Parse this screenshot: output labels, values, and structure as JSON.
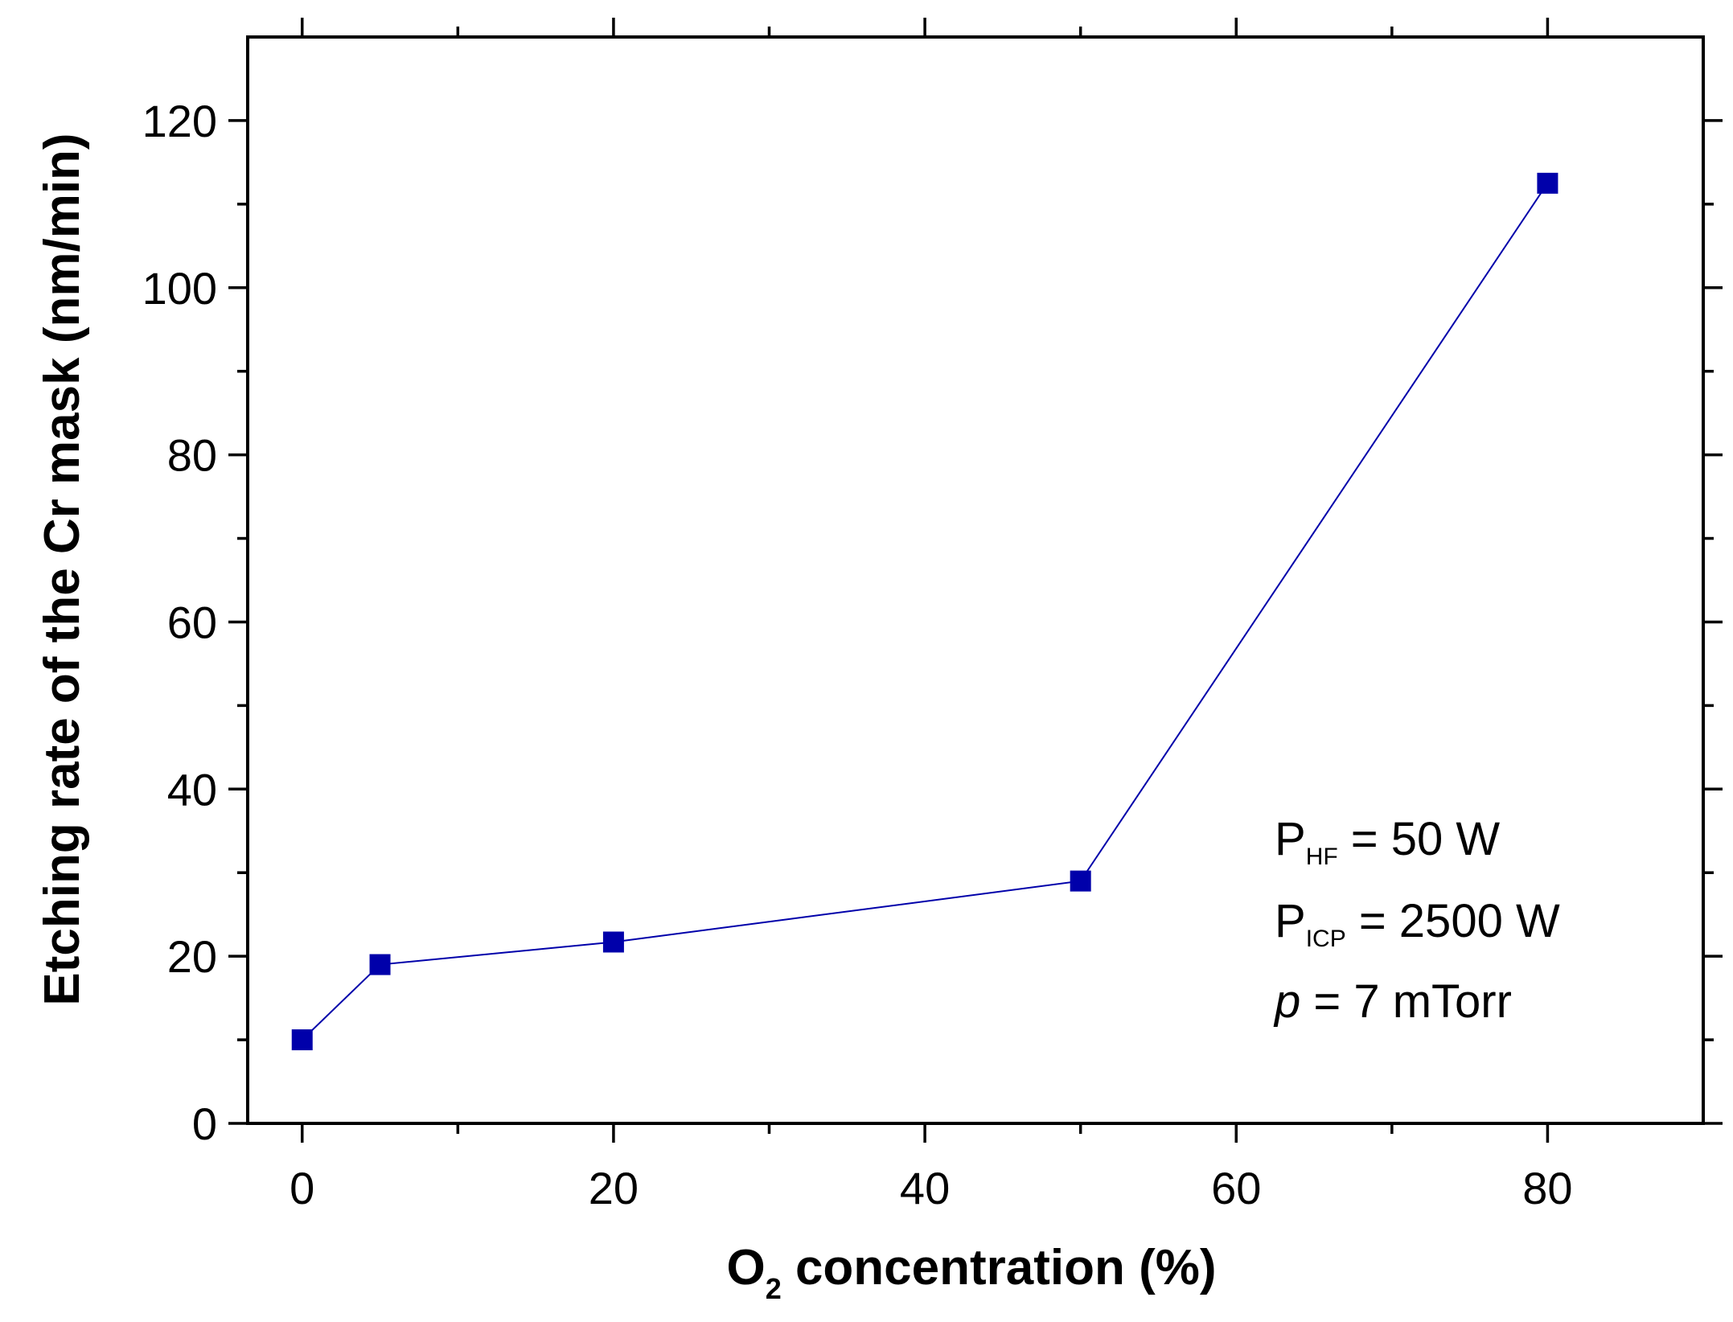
{
  "chart_data": {
    "type": "line",
    "title": "",
    "xlabel": {
      "main": "O",
      "sub": "2",
      "rest": " concentration (%)"
    },
    "ylabel": "Etching rate of the Cr mask (nm/min)",
    "xlim": [
      -3.5,
      90
    ],
    "ylim": [
      0,
      130
    ],
    "xticks_major": [
      0,
      20,
      40,
      60,
      80
    ],
    "xticks_minor": [
      10,
      30,
      50,
      70
    ],
    "yticks_major": [
      0,
      20,
      40,
      60,
      80,
      100,
      120
    ],
    "yticks_minor": [
      10,
      30,
      50,
      70,
      90,
      110
    ],
    "xtick_labels": [
      "0",
      "20",
      "40",
      "60",
      "80"
    ],
    "ytick_labels": [
      "0",
      "20",
      "40",
      "60",
      "80",
      "100",
      "120"
    ],
    "grid": false,
    "series": [
      {
        "name": "Cr mask etching rate",
        "color": "#0000aa",
        "marker": "square",
        "x": [
          0,
          5,
          20,
          50,
          80
        ],
        "y": [
          10,
          19,
          21.7,
          29,
          112.5
        ]
      }
    ],
    "annotations": [
      {
        "sym": "P",
        "sub": "HF",
        "text": " = 50 W"
      },
      {
        "sym": "P",
        "sub": "ICP",
        "text": " = 2500 W"
      },
      {
        "sym": "p",
        "sub": "",
        "text": " = 7 mTorr"
      }
    ]
  }
}
